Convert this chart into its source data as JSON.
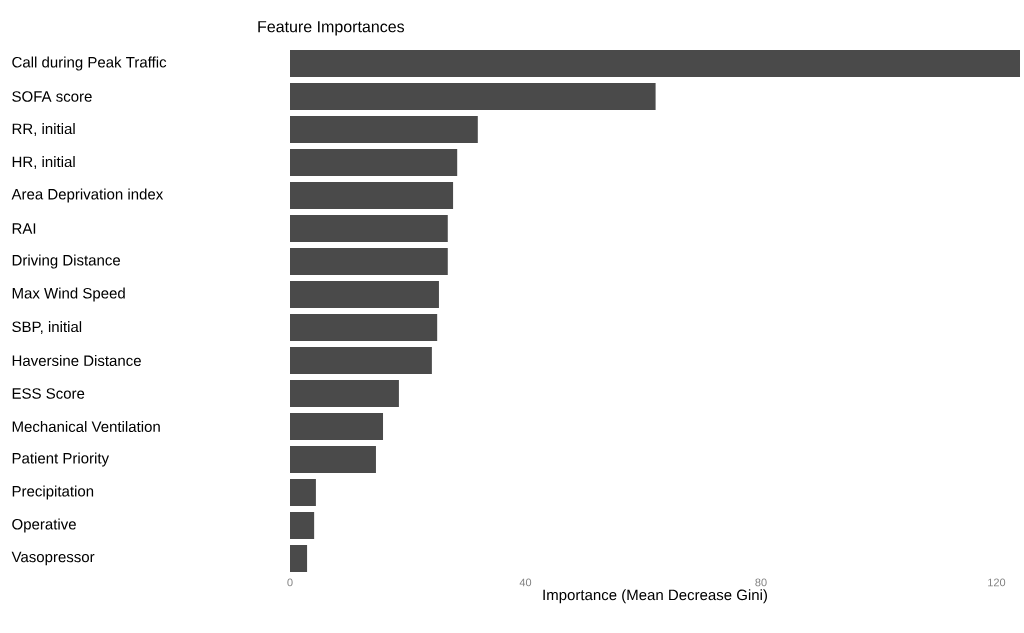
{
  "chart_data": {
    "type": "bar",
    "orientation": "horizontal",
    "title": "Feature Importances",
    "xlabel": "Importance (Mean Decrease Gini)",
    "categories": [
      "Call during Peak Traffic",
      "SOFA score",
      "RR, initial",
      "HR, initial",
      "Area Deprivation index",
      "RAI",
      "Driving Distance",
      "Max Wind Speed",
      "SBP, initial",
      "Haversine Distance",
      "ESS Score",
      "Mechanical Ventilation",
      "Patient Priority",
      "Precipitation",
      "Operative",
      "Vasopressor"
    ],
    "values": [
      124,
      62.1,
      31.9,
      28.4,
      27.7,
      26.8,
      26.8,
      25.3,
      25.0,
      24.1,
      18.5,
      15.8,
      14.6,
      4.4,
      4.1,
      2.9
    ],
    "color": "#4a4a4a",
    "xlim": [
      0,
      124
    ],
    "xticks": [
      0,
      40,
      80,
      120
    ]
  }
}
